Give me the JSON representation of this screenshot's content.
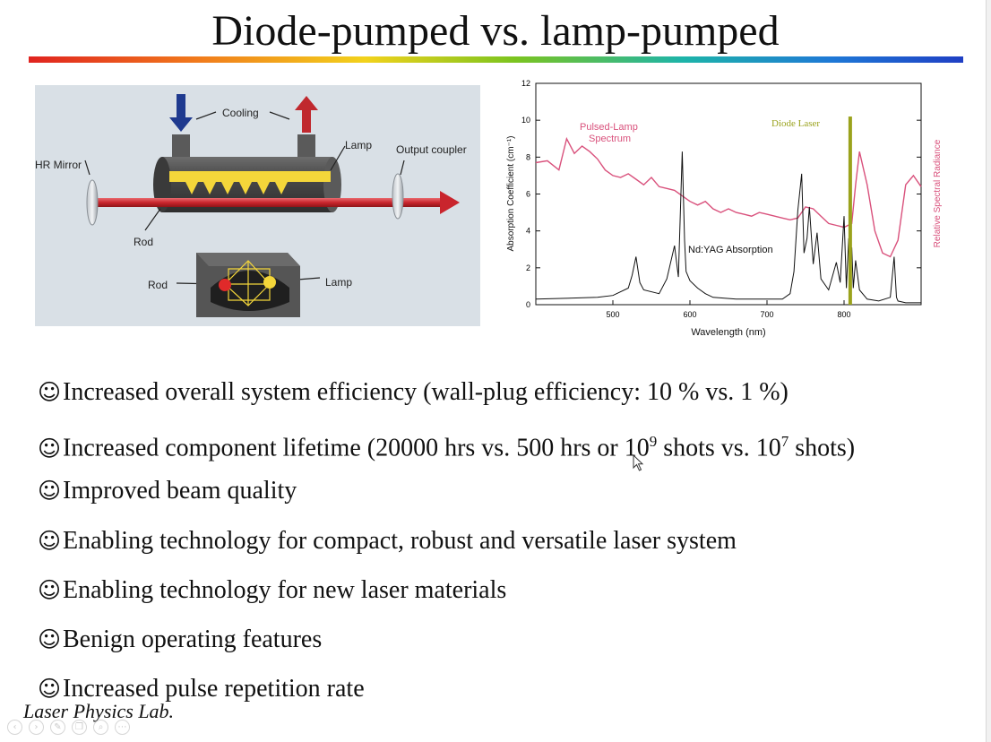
{
  "slide": {
    "title": "Diode-pumped vs. lamp-pumped",
    "footer": "Laser Physics Lab.",
    "bullet_marker": "☺"
  },
  "diagram": {
    "labels": {
      "cooling": "Cooling",
      "lamp_top": "Lamp",
      "hr_mirror": "HR Mirror",
      "output_coupler": "Output coupler",
      "rod_top": "Rod",
      "rod_bottom": "Rod",
      "lamp_bottom": "Lamp"
    },
    "colors": {
      "beam": "#d0313a",
      "lamp": "#f4d63a",
      "inlet": "#1f3a8f",
      "outlet": "#c0282e"
    }
  },
  "bullets": [
    {
      "text": "Increased overall system efficiency (wall-plug efficiency: 10 % vs. 1 %)"
    },
    {
      "pre": "Increased component lifetime (20000 hrs vs. 500 hrs or 10",
      "sup1": "9",
      "mid": " shots vs. 10",
      "sup2": "7",
      "post": " shots)"
    },
    {
      "text": "Improved beam quality"
    },
    {
      "text": "Enabling technology for compact, robust and versatile laser system"
    },
    {
      "text": "Enabling technology for new laser materials"
    },
    {
      "text": "Benign operating features"
    },
    {
      "text": "Increased pulse repetition rate"
    }
  ],
  "chart_data": {
    "type": "line",
    "xlabel": "Wavelength (nm)",
    "ylabel": "Absorption Coefficient (cm⁻¹)",
    "y2label": "Relative Spectral Radiance",
    "xlim": [
      400,
      900
    ],
    "ylim": [
      0,
      12
    ],
    "x_ticks": [
      500,
      600,
      700,
      800
    ],
    "y_ticks": [
      0,
      2,
      4,
      6,
      8,
      10,
      12
    ],
    "colors": {
      "lamp": "#d9517c",
      "absorption": "#111111",
      "diode": "#9aa21c"
    },
    "annotations": {
      "lamp": "Pulsed-Lamp",
      "lamp2": "Spectrum",
      "diode": "Diode Laser",
      "absorption": "Nd:YAG Absorption"
    },
    "diode_line": {
      "x": 808,
      "y": [
        0,
        10.2
      ]
    },
    "series": [
      {
        "x": [
          400,
          415,
          430,
          440,
          450,
          460,
          470,
          480,
          490,
          500,
          510,
          520,
          530,
          540,
          550,
          560,
          570,
          580,
          590,
          600,
          610,
          620,
          630,
          640,
          650,
          660,
          670,
          680,
          690,
          700,
          710,
          720,
          730,
          740,
          750,
          760,
          770,
          780,
          790,
          800,
          810,
          815,
          820,
          830,
          840,
          850,
          860,
          870,
          880,
          890,
          900
        ],
        "values": [
          7.7,
          7.8,
          7.3,
          9.0,
          8.2,
          8.6,
          8.3,
          7.9,
          7.3,
          7.0,
          6.9,
          7.1,
          6.8,
          6.5,
          6.9,
          6.4,
          6.3,
          6.2,
          5.9,
          5.6,
          5.4,
          5.6,
          5.2,
          5.0,
          5.2,
          5.0,
          4.9,
          4.8,
          5.0,
          4.9,
          4.8,
          4.7,
          4.6,
          4.7,
          5.3,
          5.2,
          4.8,
          4.4,
          4.3,
          4.2,
          4.4,
          6.5,
          8.3,
          6.5,
          4.0,
          2.8,
          2.6,
          3.5,
          6.5,
          7.0,
          6.4
        ]
      },
      {
        "x": [
          400,
          480,
          500,
          520,
          525,
          530,
          535,
          540,
          560,
          570,
          580,
          585,
          590,
          593,
          595,
          600,
          610,
          620,
          630,
          660,
          680,
          700,
          720,
          730,
          735,
          740,
          745,
          748,
          752,
          755,
          760,
          765,
          770,
          780,
          790,
          795,
          800,
          803,
          806,
          808,
          810,
          812,
          815,
          820,
          830,
          845,
          860,
          865,
          868,
          870,
          880,
          900
        ],
        "values": [
          0.3,
          0.4,
          0.5,
          0.9,
          1.6,
          2.6,
          1.2,
          0.8,
          0.6,
          1.4,
          3.2,
          1.5,
          8.3,
          3.5,
          1.8,
          1.3,
          0.9,
          0.6,
          0.4,
          0.3,
          0.3,
          0.3,
          0.3,
          0.6,
          1.8,
          5.1,
          7.1,
          2.8,
          3.6,
          5.3,
          2.2,
          3.9,
          1.4,
          0.8,
          2.3,
          1.2,
          4.8,
          0.9,
          3.6,
          1.2,
          3.1,
          0.9,
          2.4,
          0.8,
          0.3,
          0.2,
          0.4,
          2.6,
          0.4,
          0.2,
          0.1,
          0.1
        ]
      }
    ]
  },
  "toolbar": {
    "icons": [
      "back-icon",
      "forward-icon",
      "pen-icon",
      "copy-icon",
      "zoom-icon",
      "more-icon"
    ],
    "glyphs": [
      "‹",
      "›",
      "✎",
      "❐",
      "⌕",
      "⋯"
    ]
  },
  "cursor_icon": "arrow-cursor-icon"
}
